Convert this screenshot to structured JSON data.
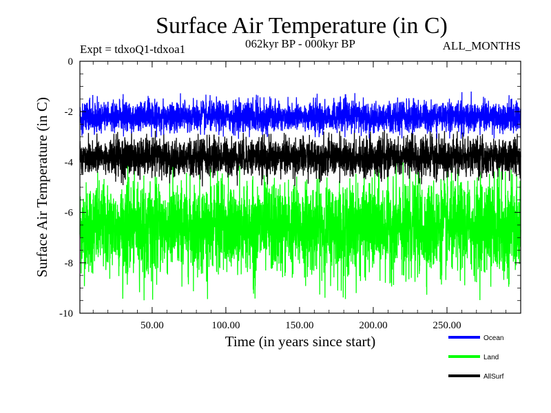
{
  "chart_data": {
    "type": "line",
    "title": "Surface Air Temperature (in C)",
    "subtitle_left": "Expt = tdxoQ1-tdxoa1",
    "subtitle_center": "062kyr BP - 000kyr BP",
    "subtitle_right": "ALL_MONTHS",
    "xlabel": "Time (in years since start)",
    "ylabel": "Surface Air Temperature (in C)",
    "xlim": [
      1,
      300
    ],
    "ylim": [
      -10,
      0
    ],
    "x_ticks": [
      50,
      100,
      150,
      200,
      250
    ],
    "x_tick_labels": [
      "50.00",
      "100.00",
      "150.00",
      "200.00",
      "250.00"
    ],
    "y_ticks": [
      0,
      -2,
      -4,
      -6,
      -8,
      -10
    ],
    "y_tick_labels": [
      "0",
      "-2",
      "-4",
      "-6",
      "-8",
      "-10"
    ],
    "legend_position": "bottom-right",
    "series": [
      {
        "name": "Ocean",
        "color": "#0000ff",
        "mean": -2.2,
        "noise_range": [
          -3.1,
          -1.2
        ]
      },
      {
        "name": "Land",
        "color": "#00ff00",
        "mean": -6.6,
        "noise_range": [
          -9.5,
          -4.0
        ]
      },
      {
        "name": "AllSurf",
        "color": "#000000",
        "mean": -3.8,
        "noise_range": [
          -5.0,
          -2.7
        ]
      }
    ]
  }
}
